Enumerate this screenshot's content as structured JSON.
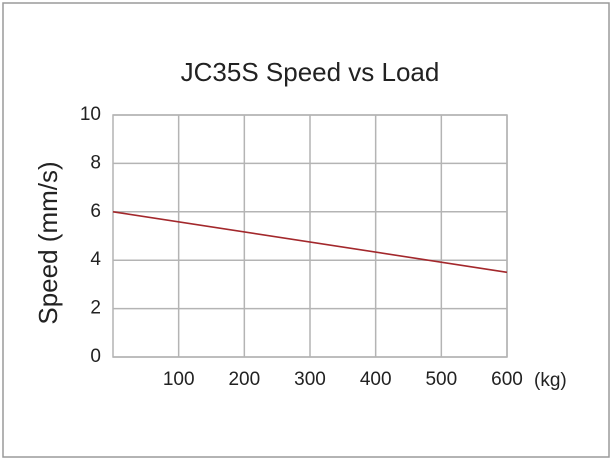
{
  "chart_data": {
    "type": "line",
    "title": "JC35S Speed vs Load",
    "x_label": "(kg)",
    "y_label": "Speed (mm/s)",
    "x": [
      0,
      600
    ],
    "values": [
      6,
      3.5
    ],
    "color": "#a3282c",
    "xlim": [
      0,
      600
    ],
    "xticks": [
      100,
      200,
      300,
      400,
      500,
      600
    ],
    "ylim": [
      0,
      10
    ],
    "yticks": [
      0,
      2,
      4,
      6,
      8,
      10
    ],
    "grid": true
  }
}
